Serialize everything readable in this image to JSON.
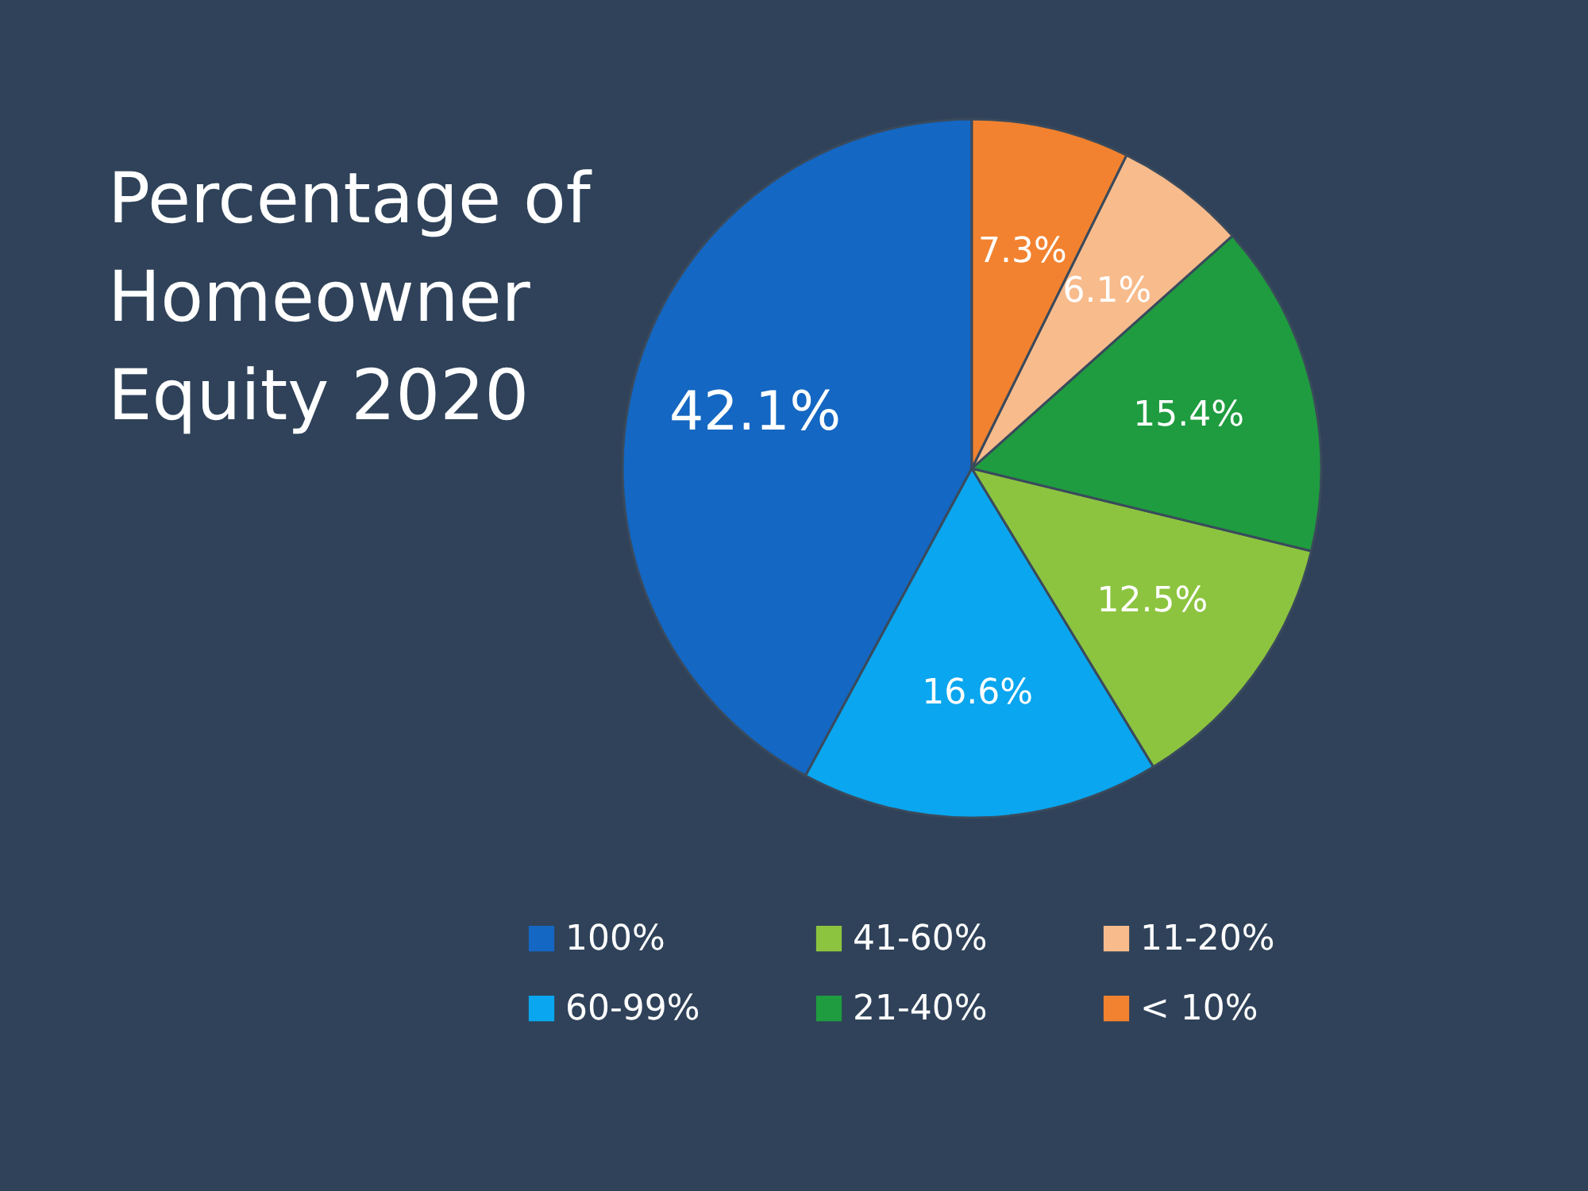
{
  "chart_data": {
    "type": "pie",
    "title": "Percentage of Homeowner Equity 2020",
    "categories": [
      "100%",
      "60-99%",
      "41-60%",
      "21-40%",
      "11-20%",
      "< 10%"
    ],
    "values": [
      42.1,
      16.6,
      12.5,
      15.4,
      6.1,
      7.3
    ],
    "value_labels": [
      "42.1%",
      "16.6%",
      "12.5%",
      "15.4%",
      "6.1%",
      "7.3%"
    ],
    "colors": [
      "#1467c2",
      "#0aa6ef",
      "#8cc43f",
      "#1f9c3f",
      "#f8bb8c",
      "#f2822f"
    ],
    "legend": "bottom"
  }
}
